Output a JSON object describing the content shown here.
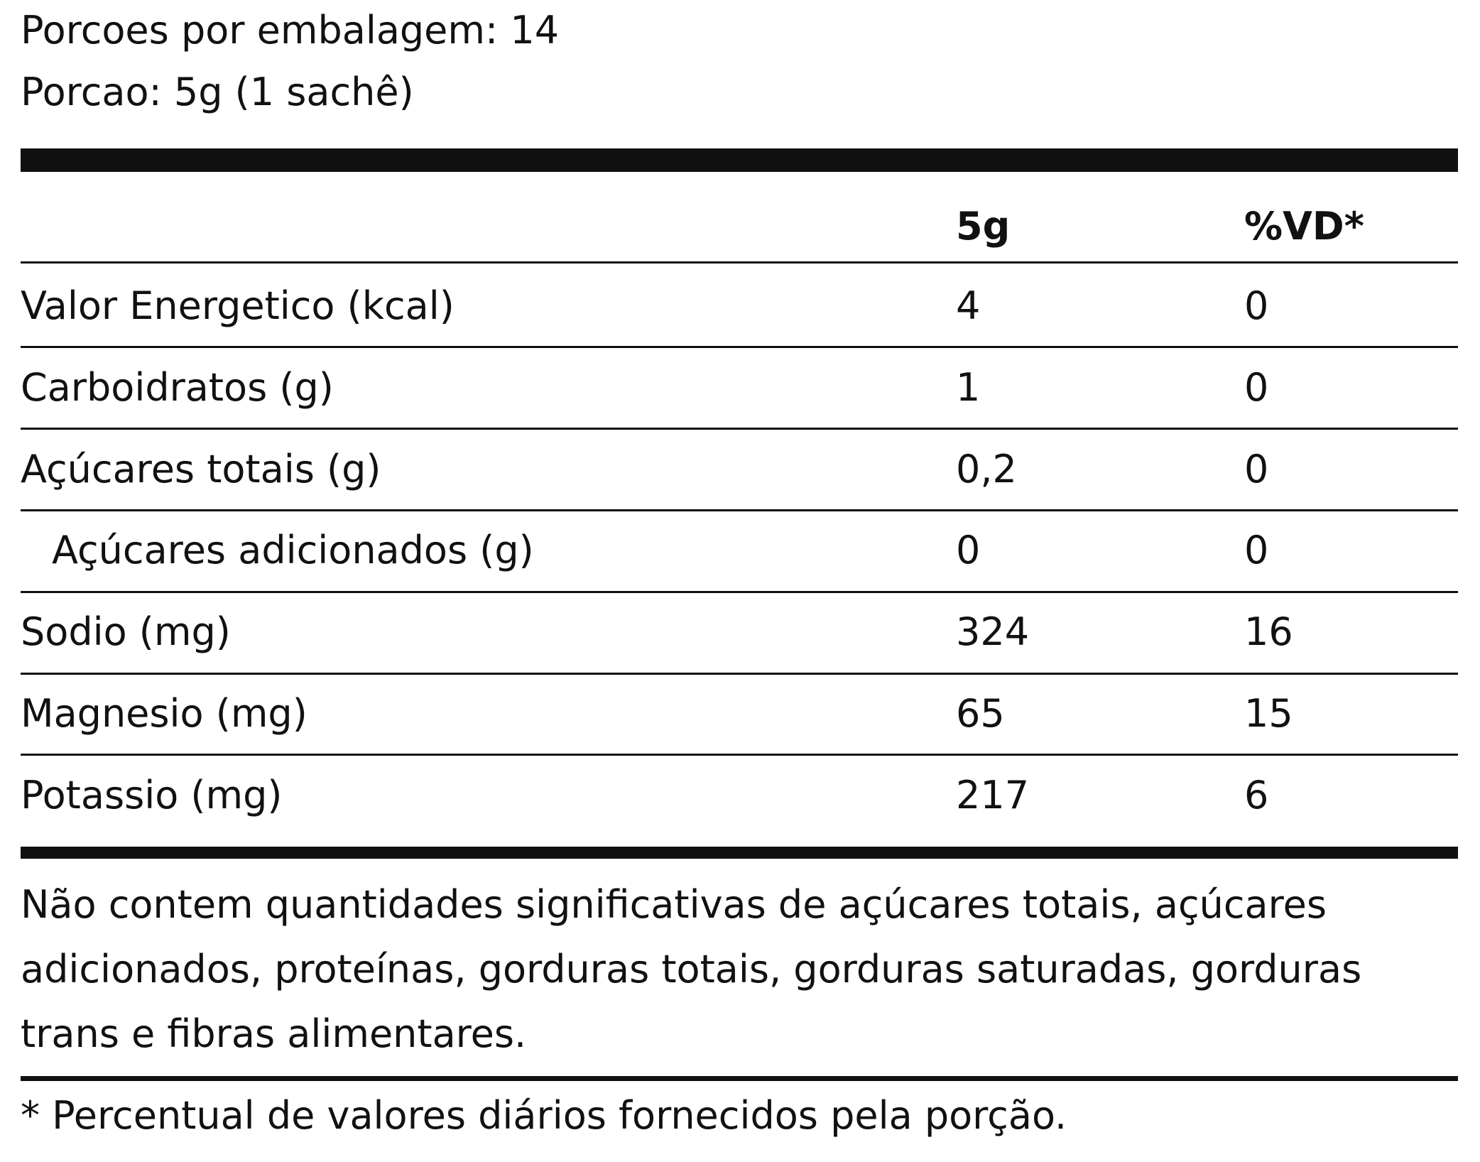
{
  "header": {
    "servings_per_package": "Porcoes por embalagem: 14",
    "serving_size": "Porcao: 5g (1 sachê)"
  },
  "table": {
    "columns": [
      "5g",
      "%VD*"
    ],
    "rows": [
      [
        "Valor Energetico (kcal)",
        "4",
        "0"
      ],
      [
        "Carboidratos (g)",
        "1",
        "0"
      ],
      [
        "Açúcares totais (g)",
        "0,2",
        "0"
      ],
      [
        "Açúcares adicionados (g)",
        "0",
        "0"
      ],
      [
        "Sodio (mg)",
        "324",
        "16"
      ],
      [
        "Magnesio (mg)",
        "65",
        "15"
      ],
      [
        "Potassio (mg)",
        "217",
        "6"
      ]
    ]
  },
  "notes": {
    "not_significant": "Não contem quantidades significativas de açúcares totais, açúcares adicionados, proteínas, gorduras totais, gorduras saturadas, gorduras trans e fibras alimentares.",
    "footnote": "* Percentual de valores diários fornecidos pela porção."
  }
}
